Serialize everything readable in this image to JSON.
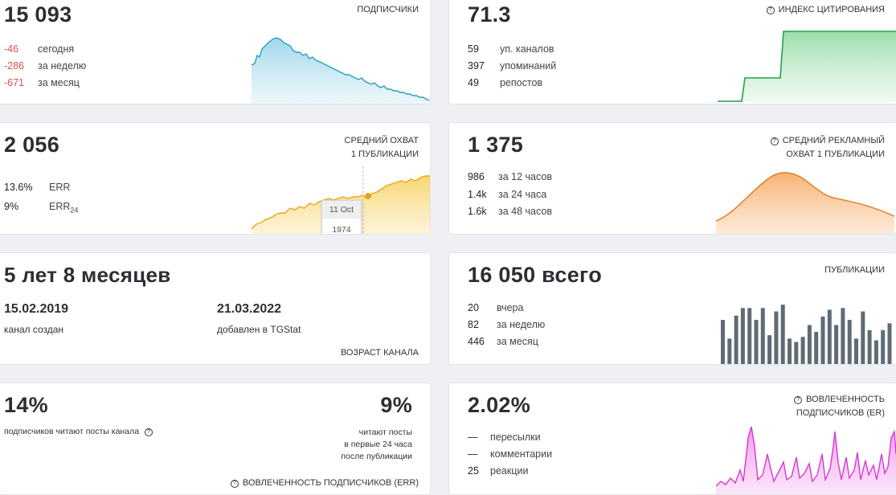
{
  "subscribers": {
    "value": "15 093",
    "caption": "ПОДПИСЧИКИ",
    "rows": [
      {
        "value": "-46",
        "label": "сегодня"
      },
      {
        "value": "-286",
        "label": "за неделю"
      },
      {
        "value": "-671",
        "label": "за месяц"
      }
    ],
    "color": "#2a9ec0"
  },
  "citation": {
    "value": "71.3",
    "caption": "ИНДЕКС ЦИТИРОВАНИЯ",
    "rows": [
      {
        "value": "59",
        "label": "уп. каналов"
      },
      {
        "value": "397",
        "label": "упоминаний"
      },
      {
        "value": "49",
        "label": "репостов"
      }
    ],
    "color": "#24a148"
  },
  "reach": {
    "value": "2 056",
    "caption_line1": "СРЕДНИЙ ОХВАТ",
    "caption_line2": "1 ПУБЛИКАЦИИ",
    "rows": [
      {
        "value": "13.6%",
        "label": "ERR"
      },
      {
        "value": "9%",
        "label": "ERR",
        "sub": "24"
      }
    ],
    "tooltip": {
      "date": "11 Oct",
      "value": "1974"
    },
    "color": "#e6a817"
  },
  "ad_reach": {
    "value": "1 375",
    "caption_line1": "СРЕДНИЙ РЕКЛАМНЫЙ",
    "caption_line2": "ОХВАТ 1 ПУБЛИКАЦИИ",
    "rows": [
      {
        "value": "986",
        "label": "за 12 часов"
      },
      {
        "value": "1.4k",
        "label": "за 24 часа"
      },
      {
        "value": "1.6k",
        "label": "за 48 часов"
      }
    ],
    "color": "#e07b1f"
  },
  "age": {
    "value": "5 лет 8 месяцев",
    "created_date": "15.02.2019",
    "created_label": "канал создан",
    "added_date": "21.03.2022",
    "added_label": "добавлен в TGStat",
    "caption": "ВОЗРАСТ КАНАЛА"
  },
  "posts": {
    "value": "16 050 всего",
    "caption": "ПУБЛИКАЦИИ",
    "rows": [
      {
        "value": "20",
        "label": "вчера"
      },
      {
        "value": "82",
        "label": "за неделю"
      },
      {
        "value": "446",
        "label": "за месяц"
      }
    ],
    "bars": [
      52,
      30,
      57,
      66,
      66,
      52,
      66,
      34,
      62,
      70,
      30,
      26,
      32,
      46,
      38,
      56,
      64,
      46,
      66,
      52,
      30,
      62,
      40,
      28,
      40,
      48
    ],
    "color": "#5f6b75"
  },
  "readers": {
    "value_left": "14%",
    "text_left": "подписчиков читают посты канала",
    "value_right": "9%",
    "text_right_1": "читают посты",
    "text_right_2": "в первые 24 часа",
    "text_right_3": "после публикации",
    "caption": "ВОВЛЕЧЕННОСТЬ ПОДПИСЧИКОВ (ERR)"
  },
  "engagement": {
    "value": "2.02%",
    "caption_line1": "ВОВЛЕЧЕННОСТЬ",
    "caption_line2": "ПОДПИСЧИКОВ (ER)",
    "rows": [
      {
        "value": "—",
        "label": "пересылки"
      },
      {
        "value": "—",
        "label": "комментарии"
      },
      {
        "value": "25",
        "label": "реакции"
      }
    ],
    "color": "#d63ad0"
  },
  "icons": {
    "help": "?"
  }
}
